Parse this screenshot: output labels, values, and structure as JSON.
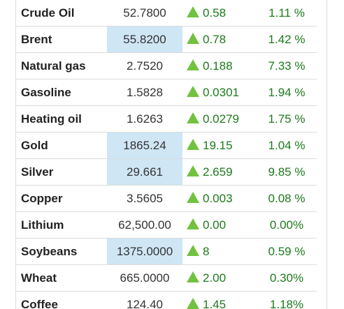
{
  "commodities": [
    {
      "name": "Crude Oil",
      "price": "52.7800",
      "change": "0.58",
      "percent": "1.11 %",
      "highlight": false
    },
    {
      "name": "Brent",
      "price": "55.8200",
      "change": "0.78",
      "percent": "1.42 %",
      "highlight": true
    },
    {
      "name": "Natural gas",
      "price": "2.7520",
      "change": "0.188",
      "percent": "7.33 %",
      "highlight": false
    },
    {
      "name": "Gasoline",
      "price": "1.5828",
      "change": "0.0301",
      "percent": "1.94 %",
      "highlight": false
    },
    {
      "name": "Heating oil",
      "price": "1.6263",
      "change": "0.0279",
      "percent": "1.75 %",
      "highlight": false
    },
    {
      "name": "Gold",
      "price": "1865.24",
      "change": "19.15",
      "percent": "1.04 %",
      "highlight": true
    },
    {
      "name": "Silver",
      "price": "29.661",
      "change": "2.659",
      "percent": "9.85 %",
      "highlight": true
    },
    {
      "name": "Copper",
      "price": "3.5605",
      "change": "0.003",
      "percent": "0.08 %",
      "highlight": false
    },
    {
      "name": "Lithium",
      "price": "62,500.00",
      "change": "0.00",
      "percent": "0.00%",
      "highlight": false
    },
    {
      "name": "Soybeans",
      "price": "1375.0000",
      "change": "8",
      "percent": "0.59 %",
      "highlight": true
    },
    {
      "name": "Wheat",
      "price": "665.0000",
      "change": "2.00",
      "percent": "0.30%",
      "highlight": false
    },
    {
      "name": "Coffee",
      "price": "124.40",
      "change": "1.45",
      "percent": "1.18%",
      "highlight": false
    }
  ],
  "icons": {
    "change_direction": "triangle-up-icon"
  },
  "colors": {
    "up_icon": "#72c241",
    "positive_text": "#1d7a1d",
    "price_highlight": "#cfe6f5",
    "row_border": "#dcdcdc"
  }
}
